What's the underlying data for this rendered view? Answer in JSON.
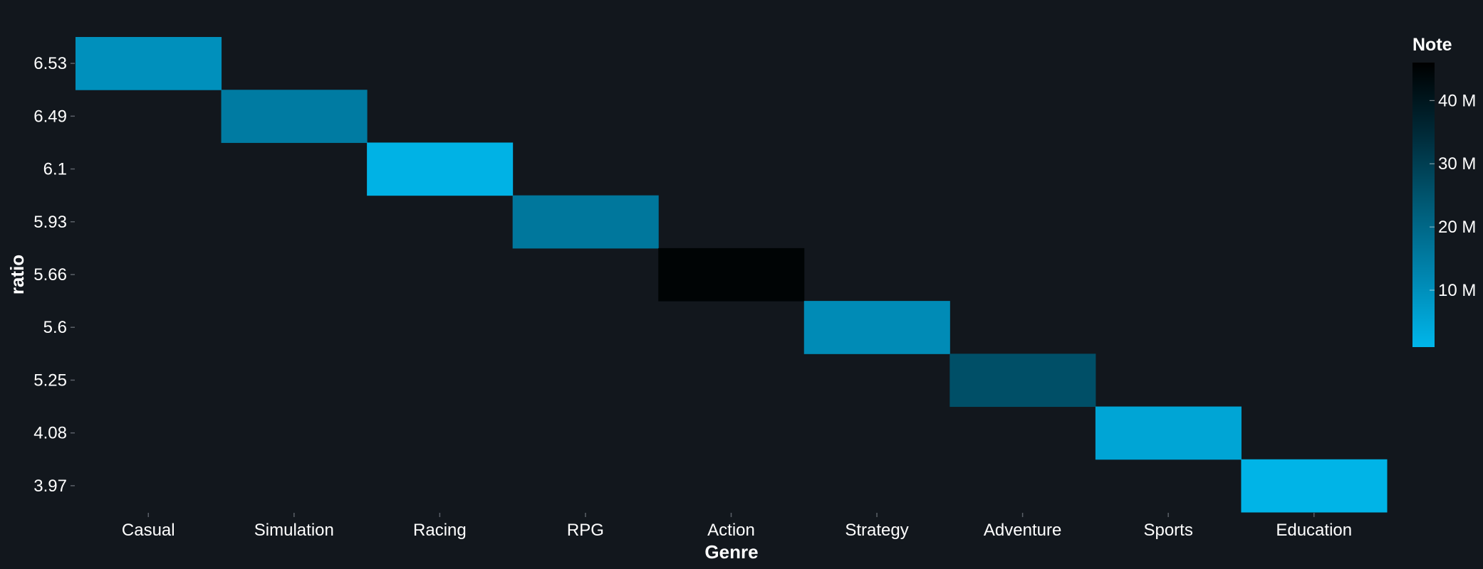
{
  "chart_data": {
    "type": "heatmap",
    "xlabel": "Genre",
    "ylabel": "ratio",
    "categories": [
      "Casual",
      "Simulation",
      "Racing",
      "RPG",
      "Action",
      "Strategy",
      "Adventure",
      "Sports",
      "Education"
    ],
    "y_categories": [
      "6.53",
      "6.49",
      "6.1",
      "5.93",
      "5.66",
      "5.6",
      "5.25",
      "4.08",
      "3.97"
    ],
    "cells": [
      {
        "x": "Casual",
        "y": "6.53",
        "value": 10000000
      },
      {
        "x": "Simulation",
        "y": "6.49",
        "value": 15000000
      },
      {
        "x": "Racing",
        "y": "6.1",
        "value": 2000000
      },
      {
        "x": "RPG",
        "y": "5.93",
        "value": 16000000
      },
      {
        "x": "Action",
        "y": "5.66",
        "value": 45000000
      },
      {
        "x": "Strategy",
        "y": "5.6",
        "value": 11000000
      },
      {
        "x": "Adventure",
        "y": "5.25",
        "value": 26000000
      },
      {
        "x": "Sports",
        "y": "4.08",
        "value": 5000000
      },
      {
        "x": "Education",
        "y": "3.97",
        "value": 1500000
      }
    ],
    "legend": {
      "title": "Note",
      "ticks": [
        {
          "value": 10000000,
          "label": "10 M"
        },
        {
          "value": 20000000,
          "label": "20 M"
        },
        {
          "value": 30000000,
          "label": "30 M"
        },
        {
          "value": 40000000,
          "label": "40 M"
        }
      ],
      "range": [
        1000000,
        46000000
      ],
      "placement": "right"
    },
    "colors": {
      "background": "#12171d",
      "scale": [
        "#00b6ea",
        "#0086b0",
        "#005a75",
        "#002a38",
        "#000000"
      ],
      "text": "#ffffff",
      "tick": "#5a6068"
    }
  }
}
